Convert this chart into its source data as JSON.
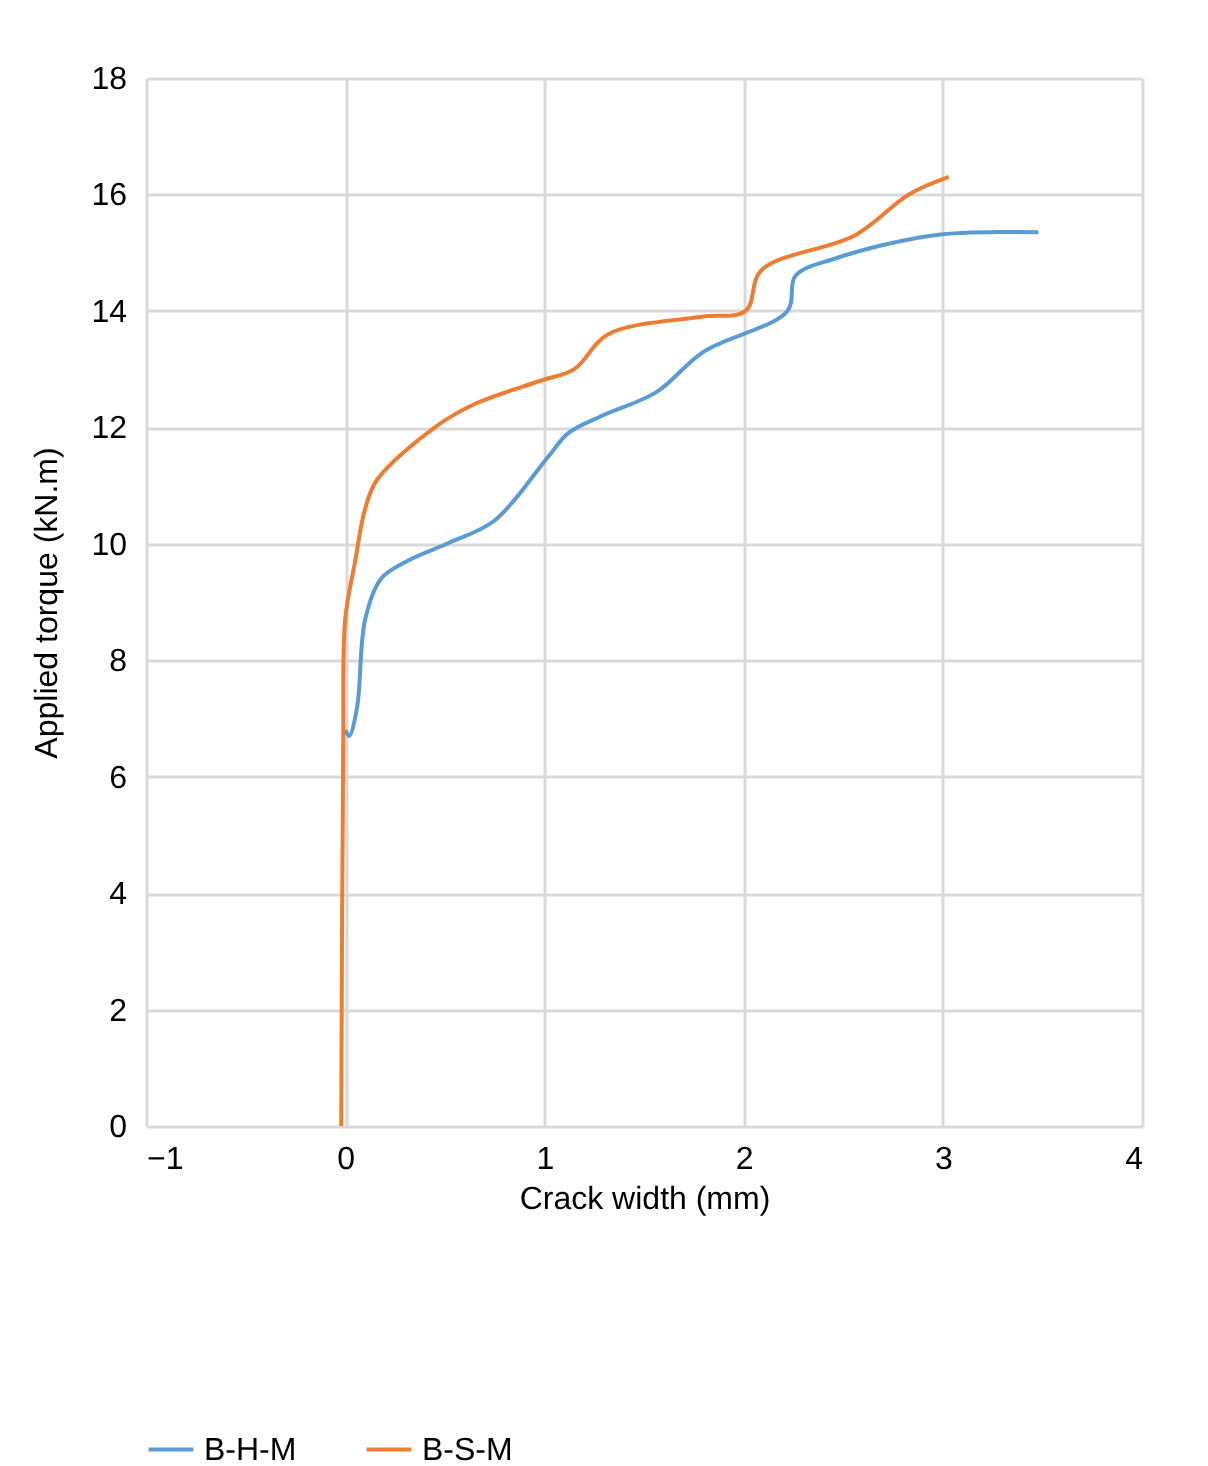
{
  "chart_data": {
    "type": "line",
    "xlabel": "Crack width (mm)",
    "ylabel": "Applied torque (kN.m)",
    "xlim": [
      -1,
      4
    ],
    "xticks": [
      -1,
      0,
      1,
      2,
      3,
      4
    ],
    "ylim": [
      0,
      18
    ],
    "yticks": [
      0,
      2,
      4,
      6,
      8,
      10,
      12,
      14,
      16,
      18
    ],
    "grid": true,
    "legend": "bottom",
    "marker": "none",
    "line_style": "solid",
    "series": [
      {
        "name": "B-H-M",
        "color": "#5b9bd5",
        "x": [
          0.0,
          0.02,
          0.06,
          0.1,
          0.18,
          0.31,
          0.51,
          0.75,
          1.02,
          1.12,
          1.29,
          1.56,
          1.8,
          2.22,
          2.26,
          2.46,
          2.96,
          3.48
        ],
        "values": [
          6.8,
          6.7,
          7.2,
          8.7,
          9.4,
          9.7,
          10.0,
          10.4,
          11.5,
          11.9,
          12.2,
          12.6,
          13.3,
          14.0,
          14.6,
          14.9,
          15.3,
          15.35
        ]
      },
      {
        "name": "B-S-M",
        "color": "#ed7d31",
        "x": [
          -0.02,
          -0.01,
          0.0,
          0.05,
          0.1,
          0.16,
          0.45,
          0.65,
          0.98,
          1.15,
          1.32,
          1.79,
          2.01,
          2.09,
          2.56,
          2.83,
          3.03
        ],
        "values": [
          0,
          6.5,
          8.7,
          9.7,
          10.6,
          11.1,
          12.0,
          12.4,
          12.8,
          13.0,
          13.6,
          13.9,
          14.0,
          14.7,
          15.3,
          16.0,
          16.3
        ]
      }
    ]
  }
}
